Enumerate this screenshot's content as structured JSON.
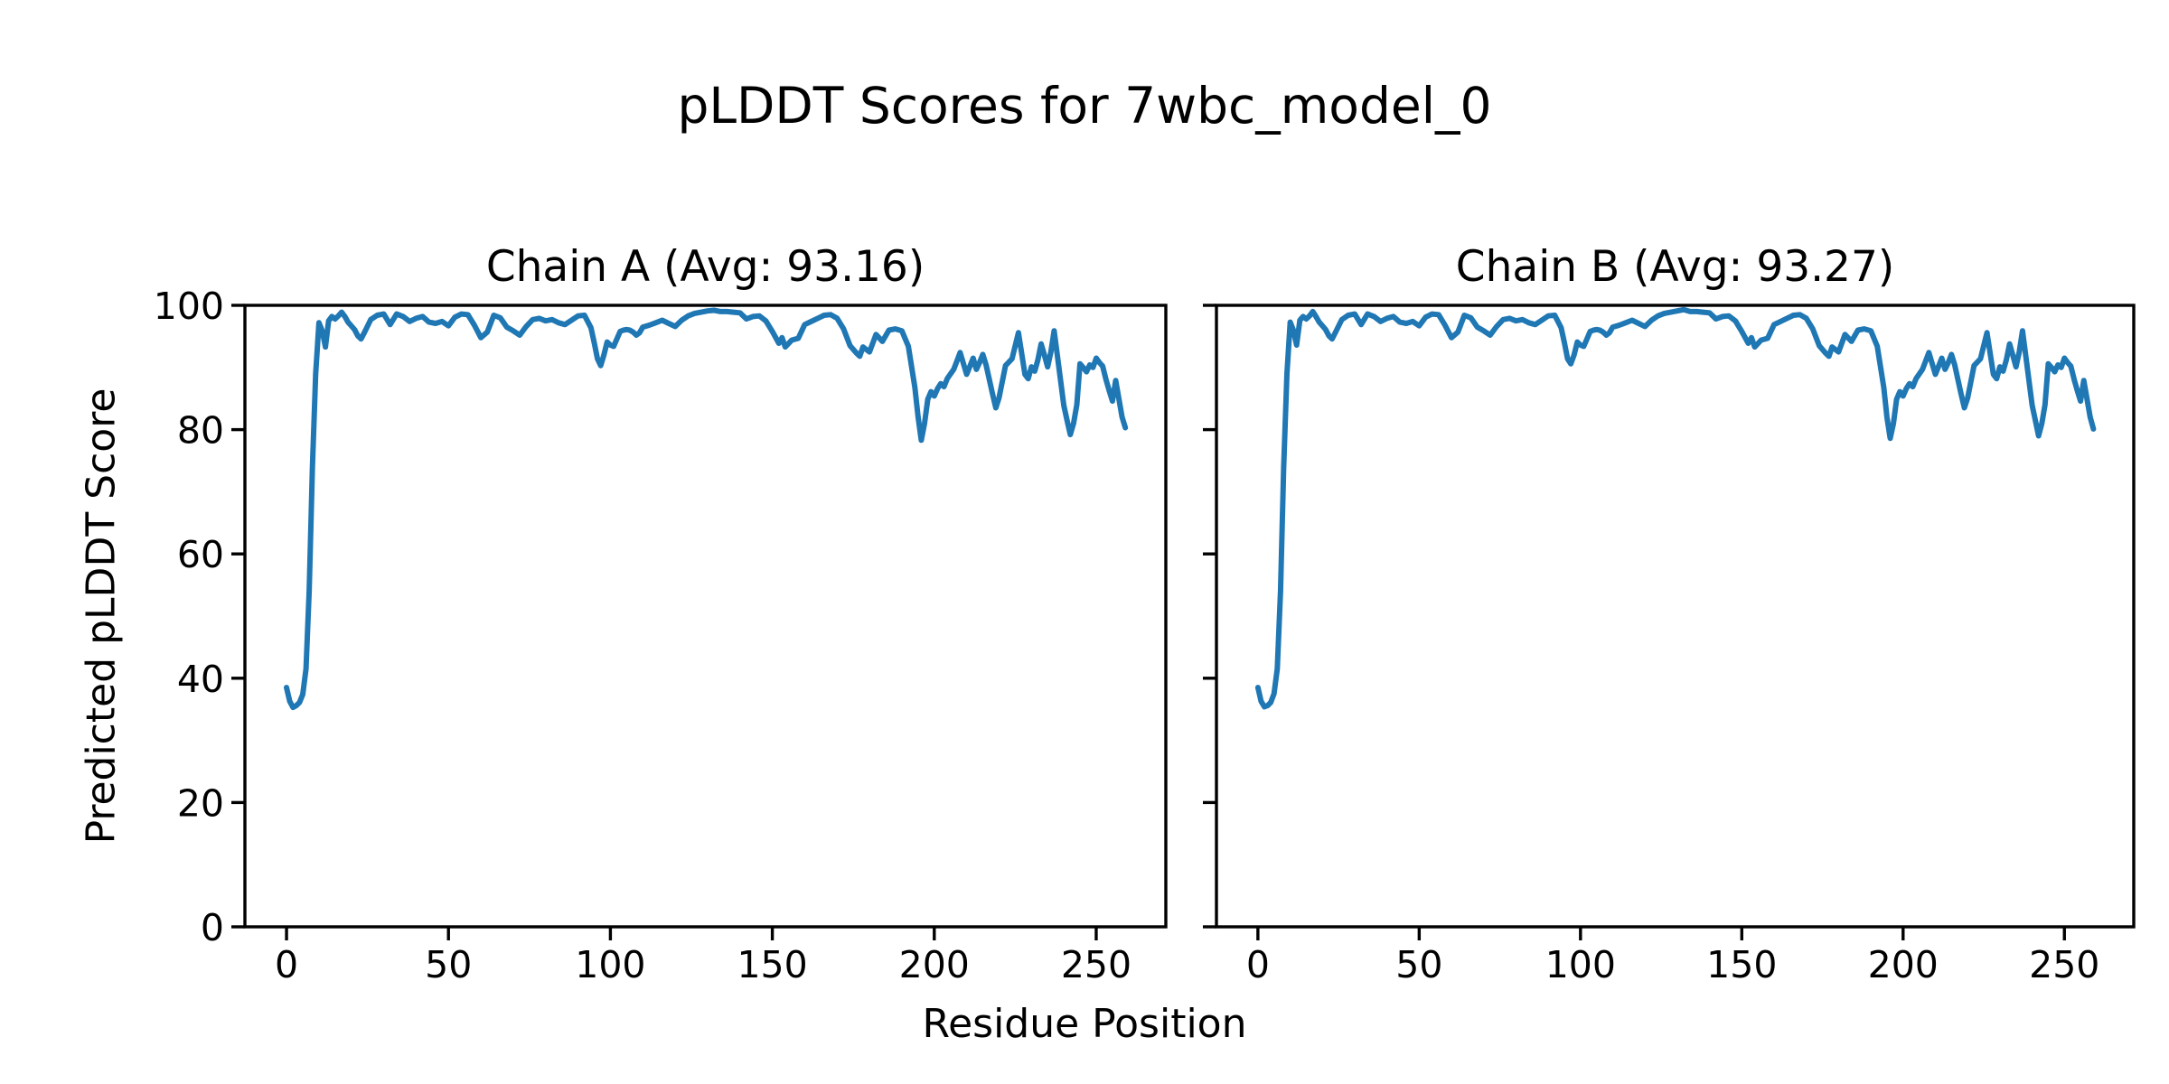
{
  "chart_data": {
    "type": "line",
    "title": "pLDDT Scores for 7wbc_model_0",
    "xlabel": "Residue Position",
    "ylabel": "Predicted pLDDT Score",
    "grid": false,
    "legend": "none",
    "line_color": "#1f77b4",
    "background_color": "#ffffff",
    "text_color": "#000000",
    "xlim": [
      -12.85,
      271.5
    ],
    "ylim": [
      0,
      100
    ],
    "x_ticks": [
      0,
      50,
      100,
      150,
      200,
      250
    ],
    "y_ticks": [
      0,
      20,
      40,
      60,
      80,
      100
    ],
    "subplots": [
      {
        "name": "Chain A",
        "title": "Chain A (Avg: 93.16)",
        "avg": 93.16,
        "x": [
          0,
          1,
          2,
          3,
          4,
          5,
          6,
          7,
          8,
          9,
          10,
          11,
          12,
          13,
          14,
          15,
          16,
          17,
          18,
          19,
          20,
          21,
          22,
          23,
          24,
          26,
          28,
          30,
          32,
          34,
          36,
          38,
          40,
          42,
          44,
          46,
          48,
          50,
          52,
          54,
          56,
          58,
          60,
          62,
          64,
          66,
          68,
          70,
          72,
          74,
          76,
          78,
          80,
          82,
          84,
          86,
          88,
          90,
          92,
          94,
          95,
          96,
          97,
          98,
          99,
          100,
          101,
          102,
          103,
          104,
          105,
          106,
          107,
          108,
          109,
          110,
          112,
          114,
          116,
          118,
          120,
          122,
          124,
          126,
          128,
          130,
          132,
          134,
          136,
          138,
          140,
          142,
          144,
          146,
          148,
          150,
          152,
          153,
          154,
          156,
          158,
          160,
          162,
          164,
          166,
          168,
          170,
          172,
          174,
          176,
          177,
          178,
          180,
          182,
          184,
          186,
          188,
          190,
          192,
          194,
          195,
          196,
          197,
          198,
          199,
          200,
          201,
          202,
          203,
          204,
          206,
          208,
          210,
          212,
          213,
          214,
          215,
          216,
          218,
          219,
          220,
          222,
          224,
          226,
          228,
          229,
          230,
          231,
          232,
          233,
          234,
          235,
          236,
          237,
          238,
          240,
          241,
          242,
          243,
          244,
          245,
          246,
          247,
          248,
          249,
          250,
          251,
          252,
          253,
          254,
          255,
          256,
          257,
          258,
          259
        ],
        "y": [
          38.5,
          36.3,
          35.3,
          35.6,
          36.1,
          37.4,
          41.5,
          54.0,
          74.0,
          89.0,
          97.2,
          95.9,
          93.3,
          97.5,
          98.2,
          97.8,
          98.3,
          98.9,
          98.2,
          97.3,
          96.7,
          96.1,
          95.1,
          94.6,
          95.6,
          97.7,
          98.4,
          98.6,
          96.9,
          98.6,
          98.2,
          97.4,
          97.9,
          98.2,
          97.3,
          97.1,
          97.4,
          96.7,
          98.1,
          98.6,
          98.5,
          96.8,
          94.8,
          95.7,
          98.4,
          98.0,
          96.5,
          95.9,
          95.2,
          96.6,
          97.7,
          97.9,
          97.5,
          97.7,
          97.2,
          96.9,
          97.6,
          98.3,
          98.4,
          96.4,
          94.0,
          91.4,
          90.3,
          92.0,
          94.1,
          93.6,
          93.4,
          94.6,
          95.8,
          96.0,
          96.1,
          96.0,
          95.7,
          95.2,
          95.6,
          96.5,
          96.8,
          97.2,
          97.6,
          97.1,
          96.6,
          97.6,
          98.3,
          98.7,
          98.9,
          99.1,
          99.2,
          99.0,
          99.0,
          98.9,
          98.8,
          97.8,
          98.2,
          98.3,
          97.5,
          95.8,
          93.9,
          94.8,
          93.3,
          94.4,
          94.7,
          96.9,
          97.4,
          97.9,
          98.4,
          98.5,
          97.9,
          96.2,
          93.5,
          92.3,
          91.8,
          93.3,
          92.5,
          95.3,
          94.2,
          96.0,
          96.2,
          95.9,
          93.4,
          86.8,
          82.0,
          78.3,
          81.0,
          84.9,
          86.1,
          85.4,
          86.6,
          87.4,
          86.9,
          88.2,
          89.7,
          92.4,
          88.9,
          91.5,
          89.7,
          90.8,
          92.1,
          90.4,
          85.7,
          83.5,
          85.1,
          90.3,
          91.4,
          95.6,
          88.9,
          88.2,
          90.1,
          89.4,
          91.2,
          93.8,
          92.0,
          90.1,
          92.5,
          95.9,
          92.0,
          83.9,
          81.5,
          79.2,
          81.0,
          84.0,
          90.6,
          90.0,
          89.3,
          90.4,
          90.0,
          91.5,
          90.8,
          90.2,
          88.1,
          86.3,
          84.6,
          87.9,
          85.0,
          82.0,
          80.3
        ]
      },
      {
        "name": "Chain B",
        "title": "Chain B (Avg: 93.27)",
        "avg": 93.27,
        "x": [
          0,
          1,
          2,
          3,
          4,
          5,
          6,
          7,
          8,
          9,
          10,
          11,
          12,
          13,
          14,
          15,
          16,
          17,
          18,
          19,
          20,
          21,
          22,
          23,
          24,
          26,
          28,
          30,
          32,
          34,
          36,
          38,
          40,
          42,
          44,
          46,
          48,
          50,
          52,
          54,
          56,
          58,
          60,
          62,
          64,
          66,
          68,
          70,
          72,
          74,
          76,
          78,
          80,
          82,
          84,
          86,
          88,
          90,
          92,
          94,
          95,
          96,
          97,
          98,
          99,
          100,
          101,
          102,
          103,
          104,
          105,
          106,
          107,
          108,
          109,
          110,
          112,
          114,
          116,
          118,
          120,
          122,
          124,
          126,
          128,
          130,
          132,
          134,
          136,
          138,
          140,
          142,
          144,
          146,
          148,
          150,
          152,
          153,
          154,
          156,
          158,
          160,
          162,
          164,
          166,
          168,
          170,
          172,
          174,
          176,
          177,
          178,
          180,
          182,
          184,
          186,
          188,
          190,
          192,
          194,
          195,
          196,
          197,
          198,
          199,
          200,
          201,
          202,
          203,
          204,
          206,
          208,
          210,
          212,
          213,
          214,
          215,
          216,
          218,
          219,
          220,
          222,
          224,
          226,
          228,
          229,
          230,
          231,
          232,
          233,
          234,
          235,
          236,
          237,
          238,
          240,
          241,
          242,
          243,
          244,
          245,
          246,
          247,
          248,
          249,
          250,
          251,
          252,
          253,
          254,
          255,
          256,
          257,
          258,
          259
        ],
        "y": [
          38.5,
          36.3,
          35.4,
          35.6,
          36.1,
          37.5,
          41.5,
          54.0,
          74.0,
          89.0,
          97.3,
          96.0,
          93.6,
          97.6,
          98.2,
          97.8,
          98.3,
          99.0,
          98.2,
          97.3,
          96.7,
          96.1,
          95.1,
          94.6,
          95.6,
          97.7,
          98.4,
          98.6,
          96.9,
          98.6,
          98.2,
          97.4,
          97.9,
          98.2,
          97.3,
          97.1,
          97.4,
          96.7,
          98.1,
          98.6,
          98.5,
          96.8,
          94.8,
          95.7,
          98.4,
          98.0,
          96.5,
          95.9,
          95.2,
          96.6,
          97.7,
          97.9,
          97.5,
          97.7,
          97.2,
          96.9,
          97.6,
          98.3,
          98.4,
          96.4,
          94.0,
          91.4,
          90.6,
          92.0,
          94.1,
          93.6,
          93.4,
          94.6,
          95.8,
          96.0,
          96.1,
          96.0,
          95.7,
          95.2,
          95.6,
          96.5,
          96.8,
          97.2,
          97.6,
          97.1,
          96.6,
          97.6,
          98.3,
          98.7,
          98.9,
          99.1,
          99.3,
          99.0,
          99.0,
          98.9,
          98.8,
          97.8,
          98.2,
          98.3,
          97.5,
          95.8,
          93.9,
          94.8,
          93.3,
          94.4,
          94.7,
          96.9,
          97.4,
          97.9,
          98.4,
          98.5,
          97.9,
          96.2,
          93.5,
          92.3,
          91.8,
          93.3,
          92.5,
          95.3,
          94.2,
          96.0,
          96.2,
          95.9,
          93.4,
          86.8,
          82.0,
          78.6,
          81.0,
          84.9,
          86.1,
          85.4,
          86.6,
          87.4,
          86.9,
          88.2,
          89.7,
          92.4,
          88.9,
          91.5,
          89.7,
          90.8,
          92.1,
          90.4,
          85.7,
          83.5,
          85.1,
          90.3,
          91.4,
          95.6,
          88.9,
          88.2,
          90.1,
          89.4,
          91.2,
          93.8,
          92.0,
          90.1,
          92.5,
          95.9,
          92.0,
          83.9,
          81.5,
          79.0,
          81.0,
          84.0,
          90.6,
          90.0,
          89.3,
          90.4,
          90.0,
          91.5,
          90.8,
          90.2,
          88.1,
          86.3,
          84.6,
          87.9,
          85.0,
          82.0,
          80.1
        ]
      }
    ]
  }
}
